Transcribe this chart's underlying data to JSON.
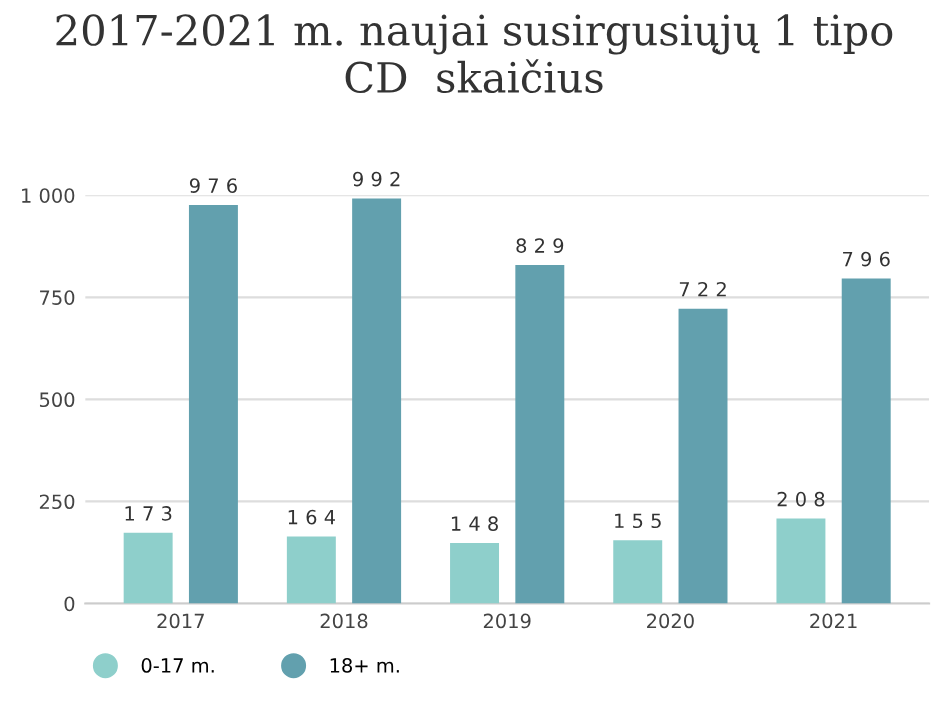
{
  "chart_data": {
    "type": "bar",
    "title": "2017-2021 m. naujai susirgusiųjų 1 tipo\nCD  skaičius",
    "categories": [
      "2017",
      "2018",
      "2019",
      "2020",
      "2021"
    ],
    "series": [
      {
        "name": "0-17 m.",
        "color": "#8ecfcb",
        "values": [
          173,
          164,
          148,
          155,
          208
        ]
      },
      {
        "name": "18+ m.",
        "color": "#62a0ae",
        "values": [
          976,
          992,
          829,
          722,
          796
        ]
      }
    ],
    "ylim": [
      0,
      1000
    ],
    "yticks": [
      0,
      250,
      500,
      750,
      {
        "value": 1000,
        "label": "1 000"
      }
    ],
    "grid": "y",
    "legend": "bottom left",
    "data_labels": true
  }
}
